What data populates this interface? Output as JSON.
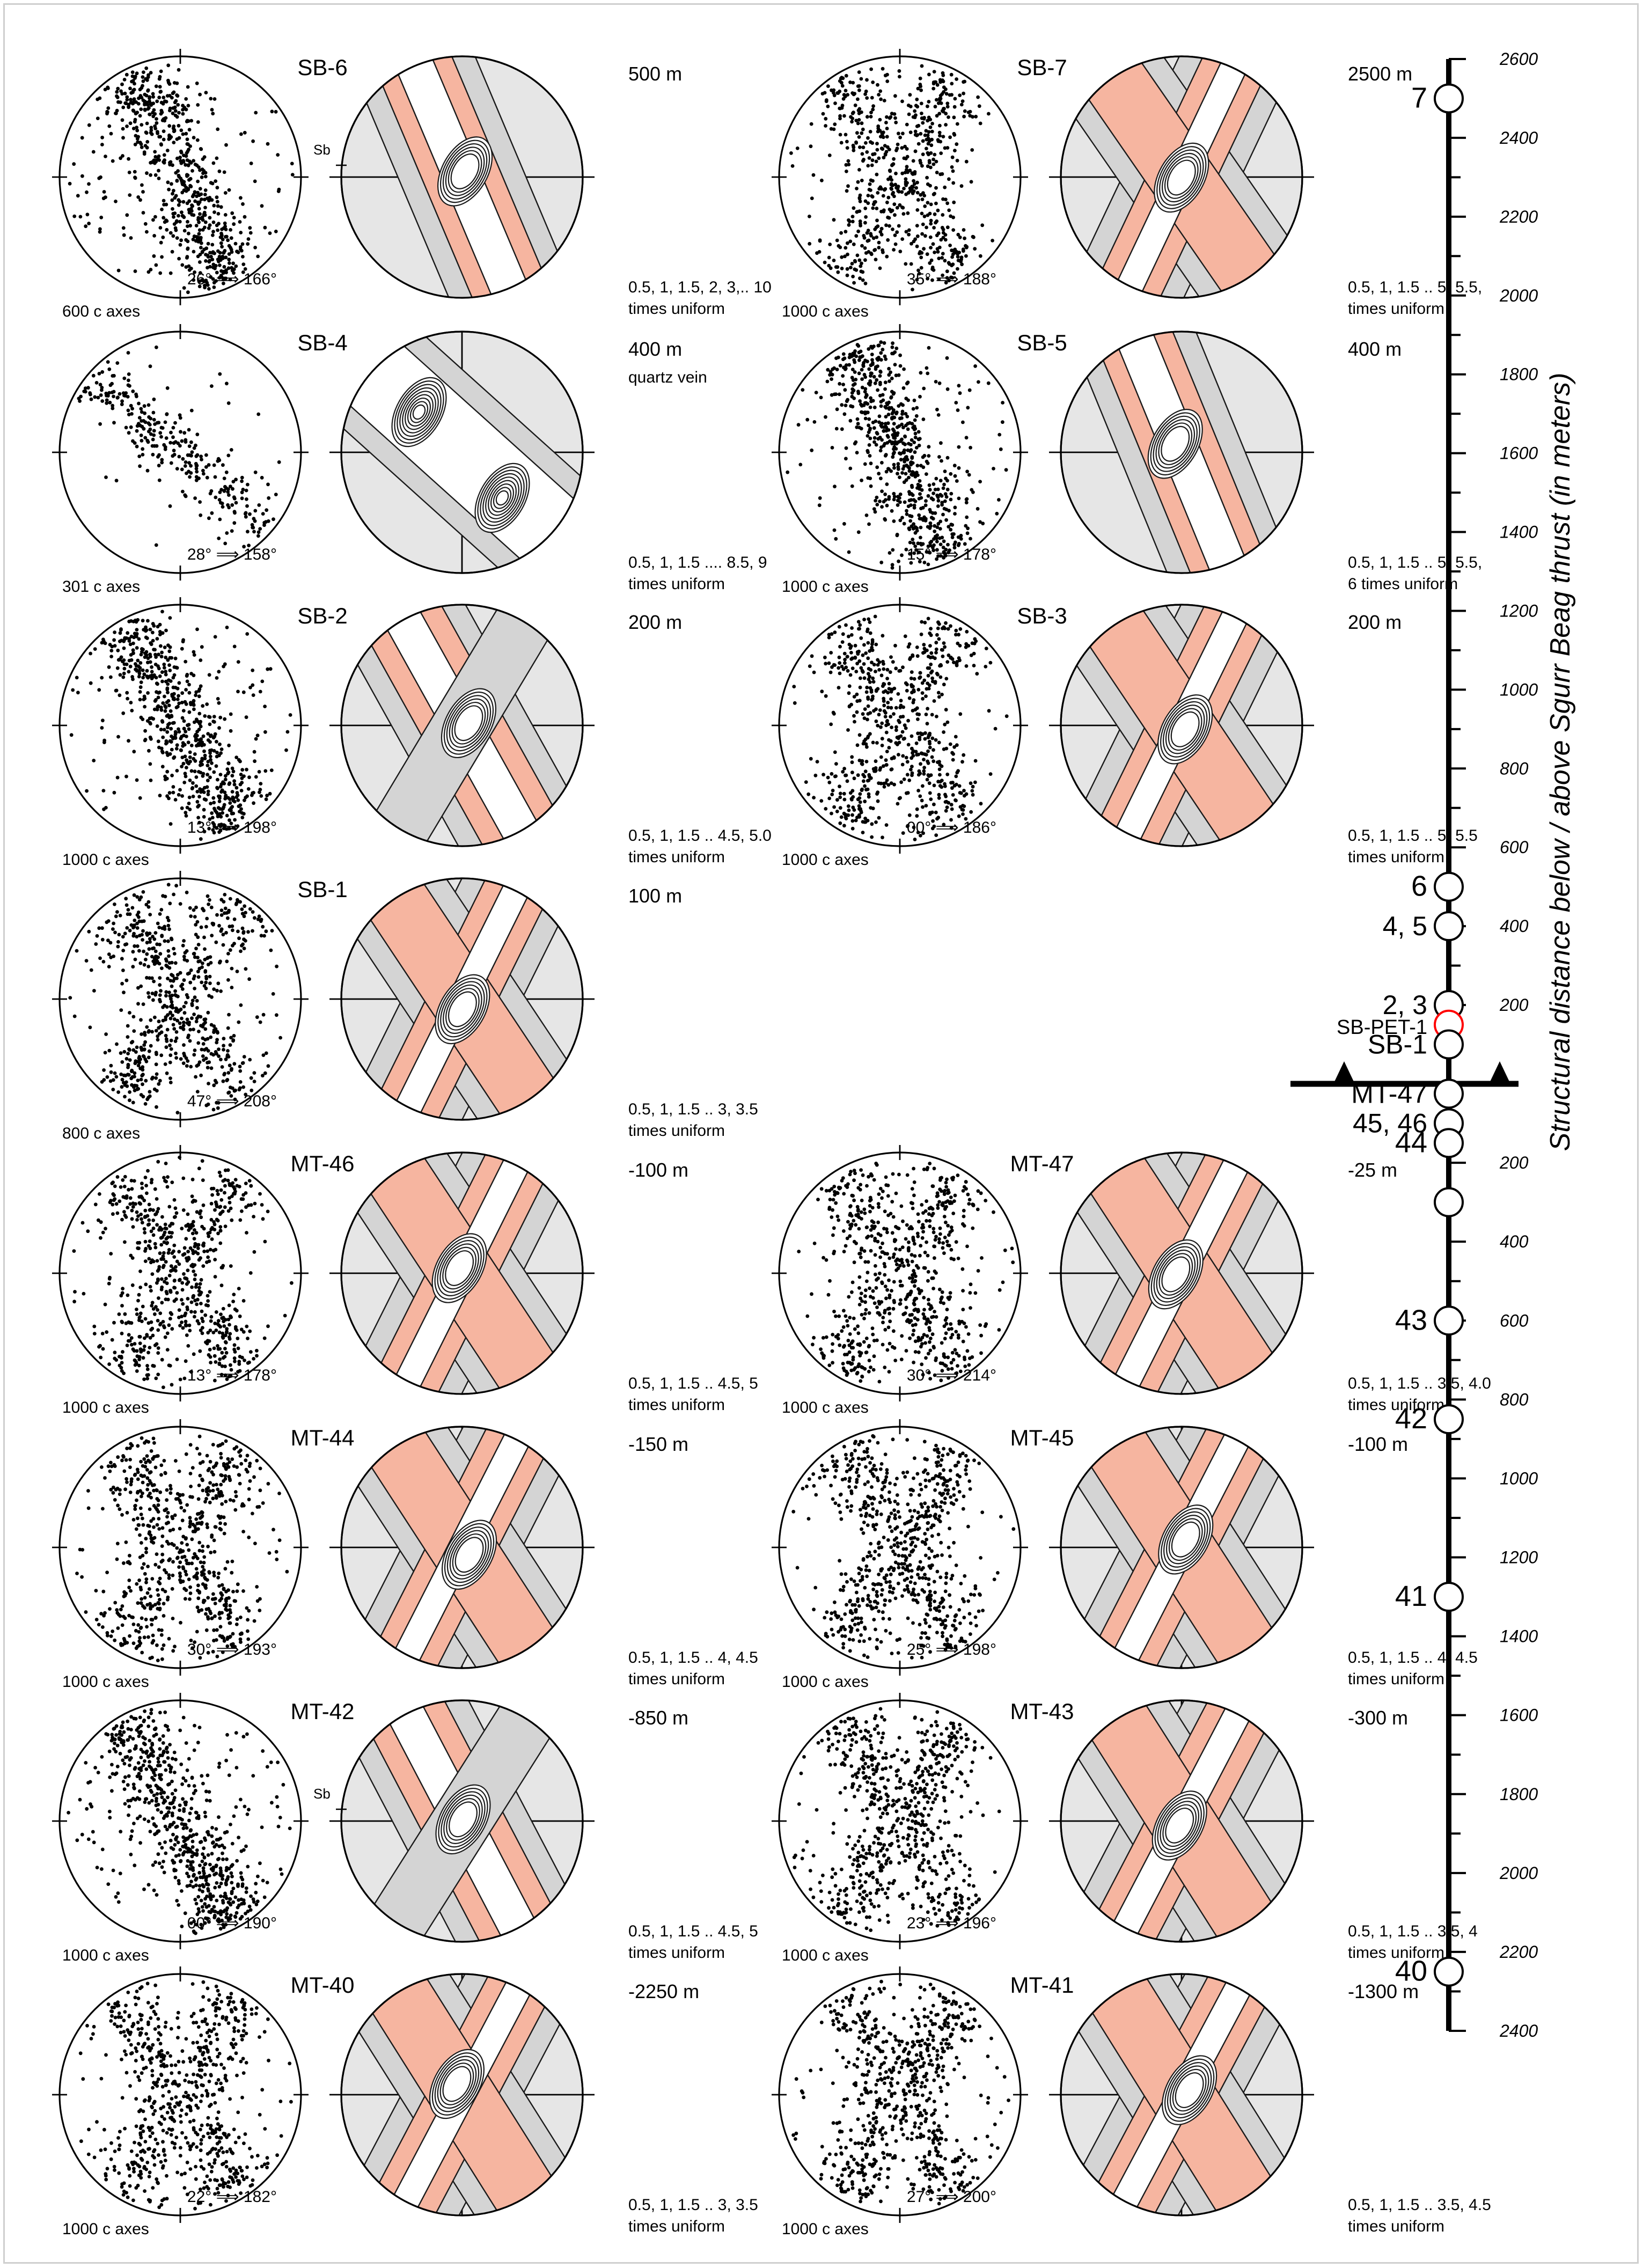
{
  "colors": {
    "shade_gray": "#d4d4d4",
    "shade_pink": "#f6b5a0",
    "shade_light": "#e6e6e6",
    "contour": "#1a1a1a",
    "ref_marker": "#ff0000"
  },
  "samples": [
    {
      "id": "SB-6",
      "axes": "600 c axes",
      "orient": "26° ⟹ 166°",
      "distance": "500 m",
      "note": "",
      "contours": "0.5, 1, 1.5, 2, 3,.. 10",
      "contours2": "times uniform",
      "sb_mark": "Sb",
      "pattern": "single"
    },
    {
      "id": "SB-7",
      "axes": "1000 c axes",
      "orient": "35° ⟹ 188°",
      "distance": "2500 m",
      "note": "",
      "contours": "0.5, 1, 1.5 .. 5, 5.5,",
      "contours2": "times uniform",
      "sb_mark": "",
      "pattern": "cross"
    },
    {
      "id": "SB-4",
      "axes": "301 c axes",
      "orient": "28° ⟹ 158°",
      "distance": "400 m",
      "note": "quartz vein",
      "contours": "0.5, 1, 1.5 .... 8.5, 9",
      "contours2": "times uniform",
      "sb_mark": "",
      "pattern": "double"
    },
    {
      "id": "SB-5",
      "axes": "1000 c axes",
      "orient": "15° ⟹ 178°",
      "distance": "400 m",
      "note": "",
      "contours": "0.5, 1, 1.5 .. 5, 5.5,",
      "contours2": "6 times uniform",
      "sb_mark": "",
      "pattern": "single"
    },
    {
      "id": "SB-2",
      "axes": "1000 c axes",
      "orient": "13° ⟹ 198°",
      "distance": "200 m",
      "note": "",
      "contours": "0.5, 1, 1.5 .. 4.5, 5.0",
      "contours2": "times uniform",
      "sb_mark": "",
      "pattern": "girdle"
    },
    {
      "id": "SB-3",
      "axes": "1000 c axes",
      "orient": "00° ⟹ 186°",
      "distance": "200 m",
      "note": "",
      "contours": "0.5, 1, 1.5 .. 5, 5.5",
      "contours2": "times uniform",
      "sb_mark": "",
      "pattern": "cross"
    },
    {
      "id": "SB-1",
      "axes": "800 c axes",
      "orient": "47° ⟹ 208°",
      "distance": "100 m",
      "note": "",
      "contours": "0.5, 1, 1.5 .. 3, 3.5",
      "contours2": "times uniform",
      "sb_mark": "",
      "pattern": "cross"
    },
    {
      "id": "MT-46",
      "axes": "1000 c axes",
      "orient": "13° ⟹ 178°",
      "distance": "-100 m",
      "note": "",
      "contours": "0.5, 1, 1.5 .. 4.5, 5",
      "contours2": "times uniform",
      "sb_mark": "",
      "pattern": "cross"
    },
    {
      "id": "MT-47",
      "axes": "1000 c axes",
      "orient": "30° ⟹ 214°",
      "distance": "-25 m",
      "note": "",
      "contours": "0.5, 1, 1.5 .. 3.5, 4.0",
      "contours2": "times uniform",
      "sb_mark": "",
      "pattern": "cross"
    },
    {
      "id": "MT-44",
      "axes": "1000 c axes",
      "orient": "30° ⟹ 193°",
      "distance": "-150 m",
      "note": "",
      "contours": "0.5, 1, 1.5 .. 4, 4.5",
      "contours2": "times uniform",
      "sb_mark": "",
      "pattern": "cross"
    },
    {
      "id": "MT-45",
      "axes": "1000 c axes",
      "orient": "25° ⟹ 198°",
      "distance": "-100 m",
      "note": "",
      "contours": "0.5, 1, 1.5 .. 4, 4.5",
      "contours2": "times uniform",
      "sb_mark": "",
      "pattern": "cross"
    },
    {
      "id": "MT-42",
      "axes": "1000 c axes",
      "orient": "00° ⟹ 190°",
      "distance": "-850 m",
      "note": "",
      "contours": "0.5, 1, 1.5 .. 4.5, 5",
      "contours2": "times uniform",
      "sb_mark": "Sb",
      "pattern": "girdle"
    },
    {
      "id": "MT-43",
      "axes": "1000 c axes",
      "orient": "23° ⟹ 196°",
      "distance": "-300 m",
      "note": "",
      "contours": "0.5, 1, 1.5 .. 3.5, 4",
      "contours2": "times uniform",
      "sb_mark": "",
      "pattern": "cross"
    },
    {
      "id": "MT-40",
      "axes": "1000 c axes",
      "orient": "22° ⟹ 182°",
      "distance": "-2250 m",
      "note": "",
      "contours": "0.5, 1, 1.5 .. 3, 3.5",
      "contours2": "times uniform",
      "sb_mark": "",
      "pattern": "cross"
    },
    {
      "id": "MT-41",
      "axes": "1000 c axes",
      "orient": "27° ⟹ 200°",
      "distance": "-1300 m",
      "note": "",
      "contours": "0.5, 1, 1.5 .. 3.5, 4.5",
      "contours2": "times uniform",
      "sb_mark": "",
      "pattern": "cross"
    }
  ],
  "scale": {
    "axis_title": "Structural distance below / above Sgurr Beag thrust (in meters)",
    "above_ticks": [
      "2600",
      "2400",
      "2200",
      "2000",
      "1800",
      "1600",
      "1400",
      "1200",
      "1000",
      "800",
      "600",
      "400",
      "200"
    ],
    "above_values": [
      2600,
      2400,
      2200,
      2000,
      1800,
      1600,
      1400,
      1200,
      1000,
      800,
      600,
      400,
      200
    ],
    "below_ticks": [
      "200",
      "400",
      "600",
      "800",
      "1000",
      "1200",
      "1400",
      "1600",
      "1800",
      "2000",
      "2200",
      "2400"
    ],
    "below_values": [
      200,
      400,
      600,
      800,
      1000,
      1200,
      1400,
      1600,
      1800,
      2000,
      2200,
      2400
    ],
    "thrust_label": "MT-47",
    "markers": [
      {
        "label": "7",
        "side": "above",
        "value": 2500,
        "style": "normal"
      },
      {
        "label": "6",
        "side": "above",
        "value": 500,
        "style": "normal"
      },
      {
        "label": "4, 5",
        "side": "above",
        "value": 400,
        "style": "normal"
      },
      {
        "label": "2, 3",
        "side": "above",
        "value": 200,
        "style": "normal"
      },
      {
        "label": "SB-PET-1",
        "side": "above",
        "value": 150,
        "style": "red"
      },
      {
        "label": "SB-1",
        "side": "above",
        "value": 100,
        "style": "normal"
      },
      {
        "label": "MT-47",
        "side": "below",
        "value": 25,
        "style": "thrust"
      },
      {
        "label": "45, 46",
        "side": "below",
        "value": 100,
        "style": "normal"
      },
      {
        "label": "44",
        "side": "below",
        "value": 150,
        "style": "normal"
      },
      {
        "label": "",
        "side": "below",
        "value": 300,
        "style": "normal"
      },
      {
        "label": "43",
        "side": "below",
        "value": 600,
        "style": "normal"
      },
      {
        "label": "42",
        "side": "below",
        "value": 850,
        "style": "normal"
      },
      {
        "label": "41",
        "side": "below",
        "value": 1300,
        "style": "normal"
      },
      {
        "label": "40",
        "side": "below",
        "value": 2250,
        "style": "normal"
      }
    ]
  }
}
